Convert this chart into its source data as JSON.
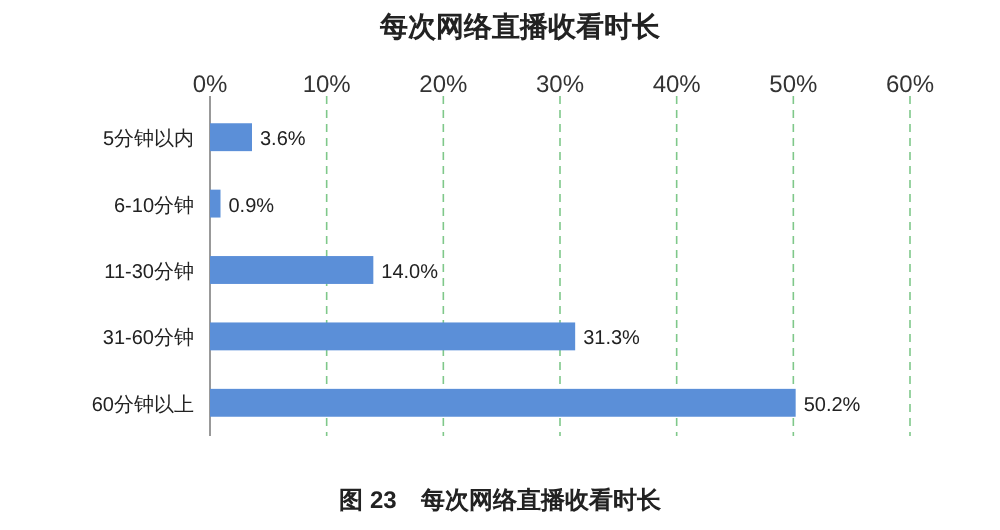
{
  "chart_data": {
    "type": "bar",
    "orientation": "horizontal",
    "title": "每次网络直播收看时长",
    "categories": [
      "5分钟以内",
      "6-10分钟",
      "11-30分钟",
      "31-60分钟",
      "60分钟以上"
    ],
    "values": [
      3.6,
      0.9,
      14.0,
      31.3,
      50.2
    ],
    "value_labels": [
      "3.6%",
      "0.9%",
      "14.0%",
      "31.3%",
      "50.2%"
    ],
    "color": "#5b8fd8",
    "xlim": [
      0,
      60
    ],
    "xticks": [
      {
        "value": 0,
        "label": "0%"
      },
      {
        "value": 10,
        "label": "10%"
      },
      {
        "value": 20,
        "label": "20%"
      },
      {
        "value": 30,
        "label": "30%"
      },
      {
        "value": 40,
        "label": "40%"
      },
      {
        "value": 50,
        "label": "50%"
      },
      {
        "value": 60,
        "label": "60%"
      }
    ],
    "grid": "x",
    "annotations": [
      "图 23　每次网络直播收看时长"
    ]
  }
}
